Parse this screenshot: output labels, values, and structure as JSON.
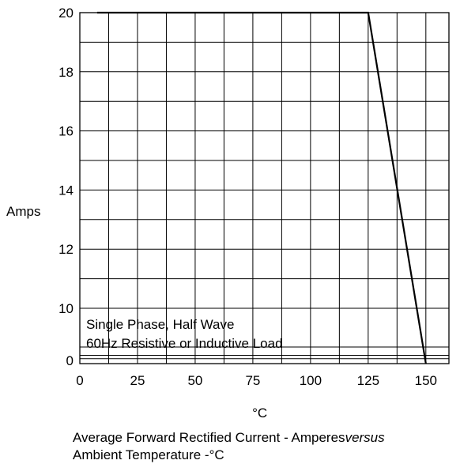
{
  "chart_data": {
    "type": "line",
    "title": "",
    "caption": {
      "line1_text": "Average Forward Rectified Current  -  Amperes",
      "line1_italic": "versus",
      "line2": "Ambient Temperature  -°C"
    },
    "xlabel": "°C",
    "ylabel": "Amps",
    "x_ticks": [
      "0",
      "25",
      "50",
      "75",
      "100",
      "125",
      "150"
    ],
    "y_ticks": [
      "0",
      "10",
      "12",
      "14",
      "16",
      "18",
      "20"
    ],
    "xlim": [
      0,
      160
    ],
    "series": [
      {
        "x": [
          7.5,
          125,
          150
        ],
        "y": [
          20,
          20,
          0
        ]
      }
    ],
    "annotations": [
      "Single Phase, Half Wave",
      "60Hz Resistive or Inductive Load"
    ],
    "grid": true,
    "legend": "none"
  }
}
